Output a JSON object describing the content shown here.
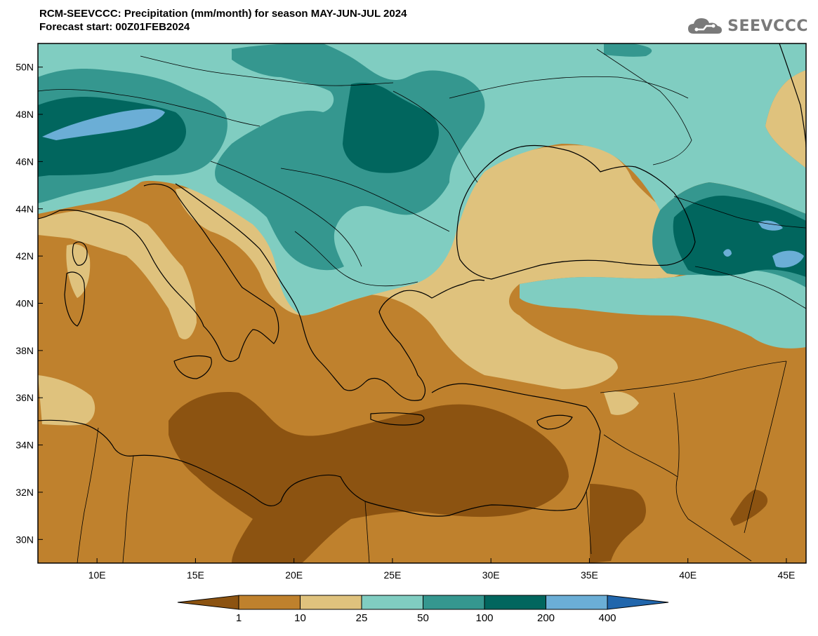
{
  "header": {
    "title": "RCM-SEEVCCC: Precipitation (mm/month) for season MAY-JUN-JUL 2024",
    "subtitle": "Forecast start: 00Z01FEB2024"
  },
  "logo": {
    "text": "SEEVCCC",
    "icon": "cloud-logo-icon"
  },
  "map": {
    "projection": "lat-lon",
    "lon_range": [
      7,
      46
    ],
    "lat_range": [
      29,
      51
    ],
    "x_ticks": [
      "10E",
      "15E",
      "20E",
      "25E",
      "30E",
      "35E",
      "40E",
      "45E"
    ],
    "y_ticks": [
      "50N",
      "48N",
      "46N",
      "44N",
      "42N",
      "40N",
      "38N",
      "36N",
      "34N",
      "32N",
      "30N"
    ]
  },
  "colorbar": {
    "labels": [
      "1",
      "10",
      "25",
      "50",
      "100",
      "200",
      "400"
    ],
    "colors": [
      "#8c5311",
      "#bf812d",
      "#dfc27d",
      "#80cdc1",
      "#35978f",
      "#01665e",
      "#6baed6",
      "#2166ac"
    ]
  }
}
